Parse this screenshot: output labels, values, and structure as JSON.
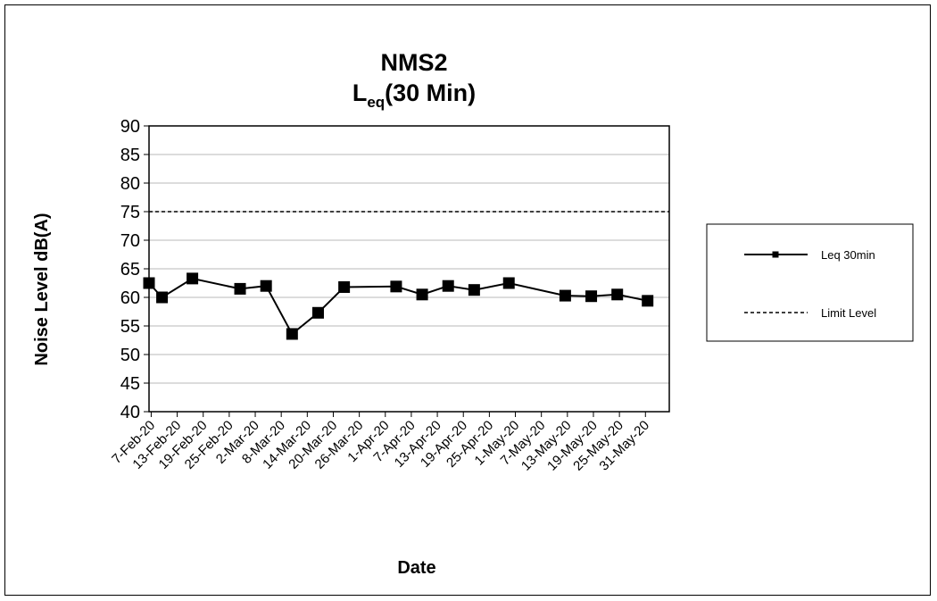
{
  "chart_data": {
    "type": "line",
    "title": "NMS2",
    "subtitle": {
      "prefix": "L",
      "subscript": "eq",
      "suffix": "(30 Min)"
    },
    "xlabel": "Date",
    "ylabel": "Noise Level dB(A)",
    "ylim": [
      40,
      90
    ],
    "yticks": [
      40,
      45,
      50,
      55,
      60,
      65,
      70,
      75,
      80,
      85,
      90
    ],
    "xlim": [
      "2020-02-07",
      "2020-06-06"
    ],
    "xtick_labels": [
      "7-Feb-20",
      "13-Feb-20",
      "19-Feb-20",
      "25-Feb-20",
      "2-Mar-20",
      "8-Mar-20",
      "14-Mar-20",
      "20-Mar-20",
      "26-Mar-20",
      "1-Apr-20",
      "7-Apr-20",
      "13-Apr-20",
      "19-Apr-20",
      "25-Apr-20",
      "1-May-20",
      "7-May-20",
      "13-May-20",
      "19-May-20",
      "25-May-20",
      "31-May-20"
    ],
    "grid": "horizontal",
    "legend_position": "right",
    "series": [
      {
        "name": "Leq 30min",
        "style": "solid-square-marker",
        "color": "#000000",
        "points": [
          {
            "x": "2020-02-07",
            "y": 62.5
          },
          {
            "x": "2020-02-10",
            "y": 60.0
          },
          {
            "x": "2020-02-17",
            "y": 63.3
          },
          {
            "x": "2020-02-28",
            "y": 61.5
          },
          {
            "x": "2020-03-05",
            "y": 62.0
          },
          {
            "x": "2020-03-11",
            "y": 53.6
          },
          {
            "x": "2020-03-17",
            "y": 57.3
          },
          {
            "x": "2020-03-23",
            "y": 61.8
          },
          {
            "x": "2020-04-04",
            "y": 61.9
          },
          {
            "x": "2020-04-10",
            "y": 60.5
          },
          {
            "x": "2020-04-16",
            "y": 62.0
          },
          {
            "x": "2020-04-22",
            "y": 61.3
          },
          {
            "x": "2020-04-30",
            "y": 62.5
          },
          {
            "x": "2020-05-13",
            "y": 60.3
          },
          {
            "x": "2020-05-19",
            "y": 60.2
          },
          {
            "x": "2020-05-25",
            "y": 60.5
          },
          {
            "x": "2020-06-01",
            "y": 59.4
          }
        ]
      },
      {
        "name": "Limit Level",
        "style": "dashed",
        "color": "#000000",
        "points": [
          {
            "x": "2020-02-07",
            "y": 75
          },
          {
            "x": "2020-06-06",
            "y": 75
          }
        ]
      }
    ]
  }
}
